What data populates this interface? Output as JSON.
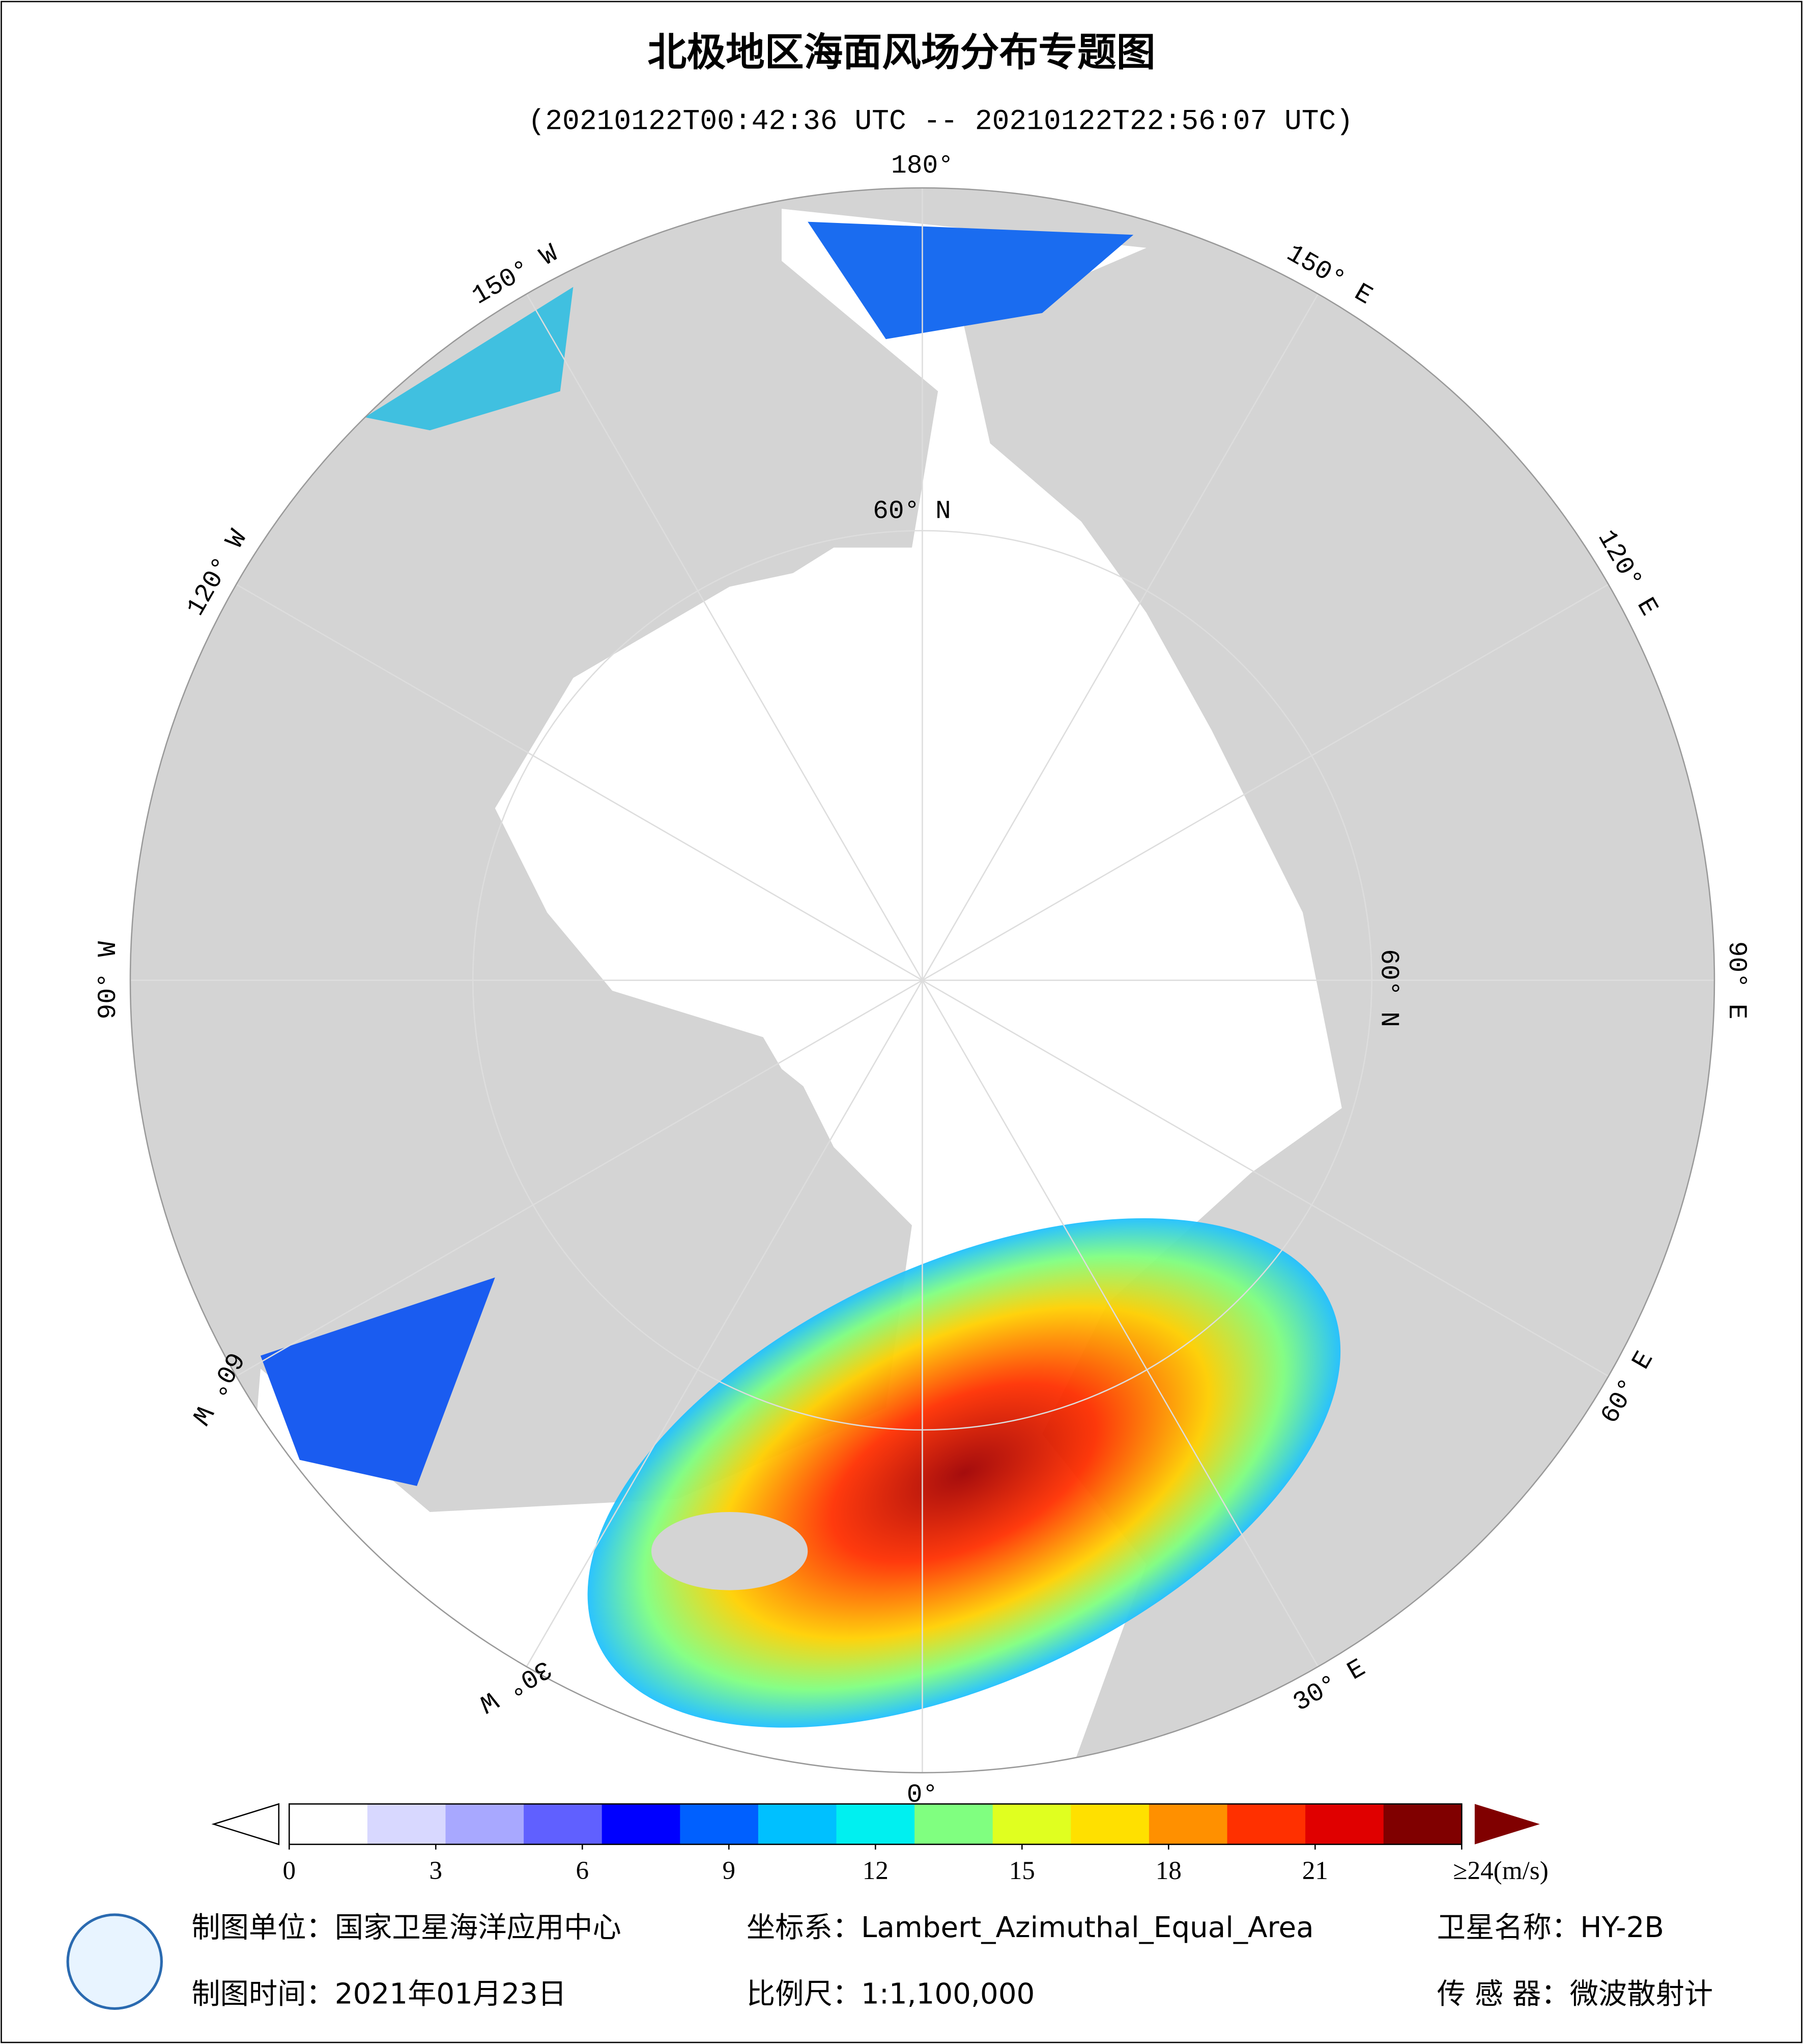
{
  "header": {
    "title": "北极地区海面风场分布专题图",
    "subtitle": "(20210122T00:42:36 UTC -- 20210122T22:56:07 UTC)"
  },
  "map": {
    "longitude_labels": [
      "180°",
      "150° E",
      "120° E",
      "90° E",
      "60° E",
      "30° E",
      "0°",
      "30° W",
      "60° W",
      "90° W",
      "120° W",
      "150° W"
    ],
    "latitude_labels": [
      "60° N",
      "60° N"
    ]
  },
  "colorbar": {
    "range": [
      0,
      24
    ],
    "ticks": [
      0,
      3,
      6,
      9,
      12,
      15,
      18,
      21,
      {
        "value": 24,
        "label": "≥24(m/s)"
      }
    ],
    "colors": [
      "#ffffff",
      "#d8d8ff",
      "#a8a8ff",
      "#6060ff",
      "#0000ff",
      "#0060ff",
      "#00c0ff",
      "#00f0f0",
      "#80ff80",
      "#e0ff20",
      "#ffe000",
      "#ff9000",
      "#ff3000",
      "#e00000",
      "#800000"
    ]
  },
  "footer": {
    "unit": "制图单位：国家卫星海洋应用中心",
    "coordinate": "坐标系：Lambert_Azimuthal_Equal_Area",
    "satellite": "卫星名称：HY-2B",
    "date": "制图时间：2021年01月23日",
    "scale": "比例尺：1:1,100,000",
    "sensor": "传 感 器：微波散射计"
  }
}
